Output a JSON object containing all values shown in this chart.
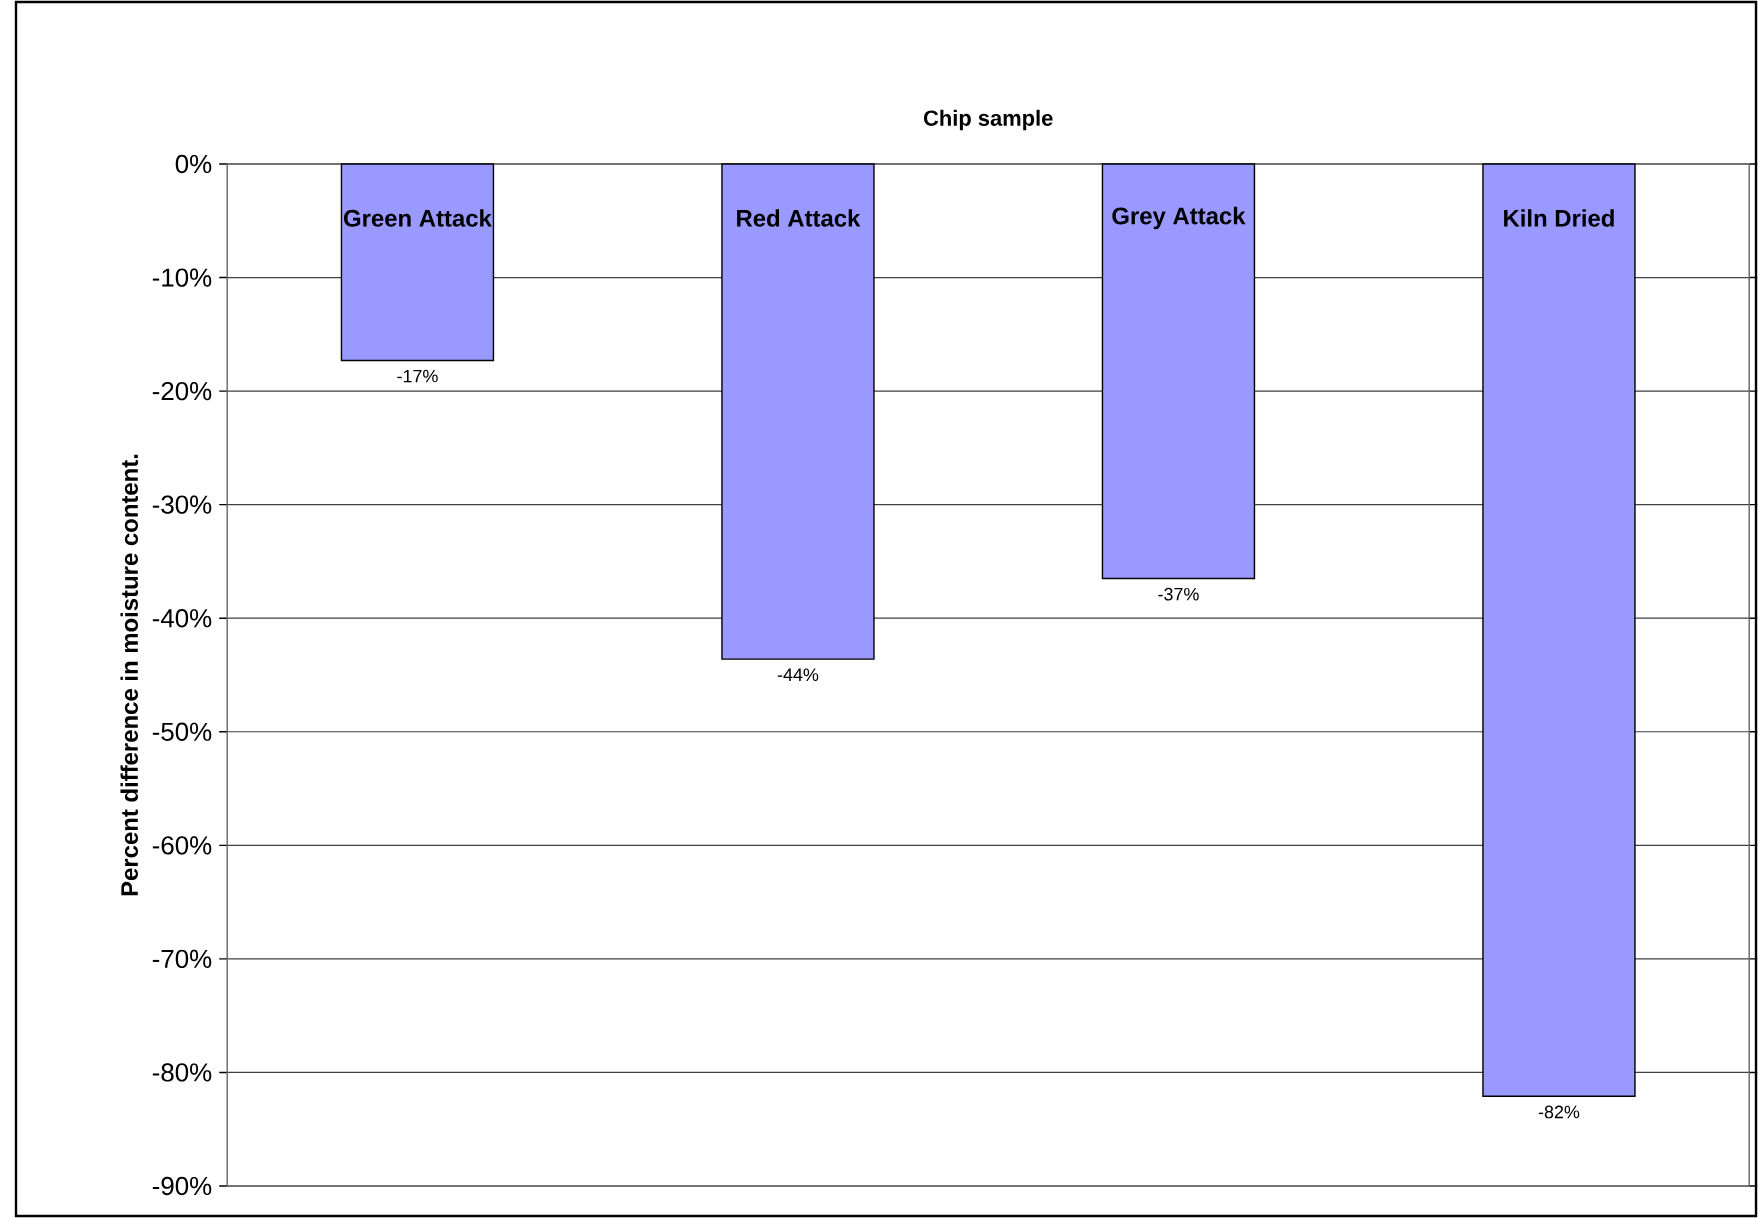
{
  "chart_data": {
    "type": "bar",
    "xlabel": "Chip sample",
    "ylabel": "Percent difference in moisture content.",
    "categories": [
      "Green Attack",
      "Red Attack",
      "Grey Attack",
      "Kiln Dried"
    ],
    "values": [
      -17.3,
      -43.6,
      -36.5,
      -82.1
    ],
    "value_labels": [
      "-17%",
      "-44%",
      "-37%",
      "-82%"
    ],
    "color": "#9999ff",
    "ylim": [
      -90,
      0
    ],
    "yticks": [
      {
        "value": 0,
        "label": "0%"
      },
      {
        "value": -10,
        "label": "-10%"
      },
      {
        "value": -20,
        "label": "-20%"
      },
      {
        "value": -30,
        "label": "-30%"
      },
      {
        "value": -40,
        "label": "-40%"
      },
      {
        "value": -50,
        "label": "-50%"
      },
      {
        "value": -60,
        "label": "-60%"
      },
      {
        "value": -70,
        "label": "-70%"
      },
      {
        "value": -80,
        "label": "-80%"
      },
      {
        "value": -90,
        "label": "-90%"
      }
    ],
    "grid": "y"
  }
}
